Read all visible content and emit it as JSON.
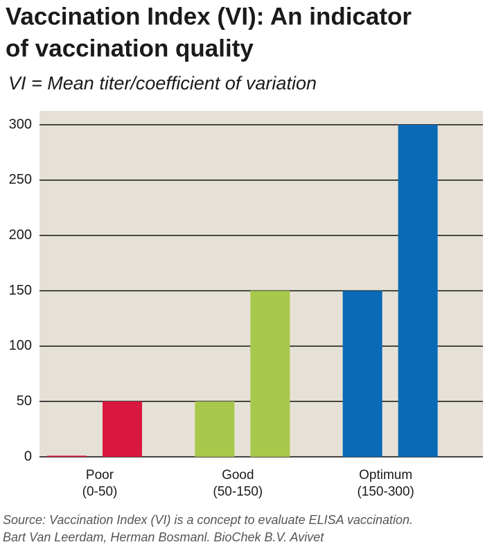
{
  "chart_data": {
    "type": "bar",
    "title_lines": [
      "Vaccination Index (VI): An indicator",
      "of vaccination quality"
    ],
    "subtitle": "VI = Mean titer/coefficient of variation",
    "categories": [
      "Poor",
      "Good",
      "Optimum"
    ],
    "category_sublabels": [
      "(0-50)",
      "(50-150)",
      "(150-300)"
    ],
    "colors": [
      "#d9183f",
      "#a7c84a",
      "#0a6ab6"
    ],
    "series": [
      {
        "values": [
          1,
          50,
          150
        ]
      },
      {
        "values": [
          50,
          150,
          300
        ]
      }
    ],
    "ylim": [
      0,
      300
    ],
    "yticks": [
      0,
      50,
      100,
      150,
      200,
      250,
      300
    ],
    "grid": true,
    "plot_background": "#e6e1d6",
    "source_lines": [
      "Source: Vaccination Index (VI) is a concept to evaluate ELISA vaccination.",
      "Bart Van Leerdam, Herman Bosmanl. BioChek B.V. Avivet"
    ]
  }
}
